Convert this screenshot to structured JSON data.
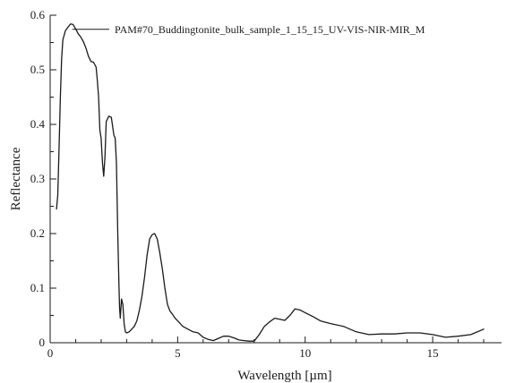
{
  "chart_data": {
    "type": "line",
    "xlabel": "Wavelength [µm]",
    "ylabel": "Reflectance",
    "xlim": [
      0,
      17.7
    ],
    "ylim": [
      0,
      0.6
    ],
    "x_ticks": [
      0,
      5,
      10,
      15
    ],
    "x_minor_ticks": [
      1,
      2,
      3,
      4,
      6,
      7,
      8,
      9,
      11,
      12,
      13,
      14,
      16,
      17
    ],
    "y_ticks": [
      0,
      0.1,
      0.2,
      0.3,
      0.4,
      0.5,
      0.6
    ],
    "y_tick_labels": [
      "0",
      "0.1",
      "0.2",
      "0.3",
      "0.4",
      "0.5",
      "0.6"
    ],
    "grid": false,
    "legend_position": "top-right",
    "series": [
      {
        "name": "PAM#70_Buddingtonite_bulk_sample_1_15_15_UV-VIS-NIR-MIR_M",
        "color": "#1a1a1a",
        "x": [
          0.25,
          0.3,
          0.35,
          0.4,
          0.45,
          0.5,
          0.6,
          0.7,
          0.8,
          0.9,
          1.0,
          1.1,
          1.2,
          1.3,
          1.4,
          1.5,
          1.6,
          1.7,
          1.8,
          1.85,
          1.9,
          1.95,
          2.0,
          2.05,
          2.1,
          2.15,
          2.2,
          2.3,
          2.4,
          2.5,
          2.55,
          2.6,
          2.65,
          2.7,
          2.72,
          2.75,
          2.8,
          2.85,
          2.9,
          2.95,
          3.0,
          3.1,
          3.2,
          3.3,
          3.4,
          3.5,
          3.6,
          3.7,
          3.8,
          3.9,
          4.0,
          4.1,
          4.2,
          4.3,
          4.4,
          4.5,
          4.6,
          4.7,
          4.8,
          4.9,
          5.0,
          5.2,
          5.4,
          5.6,
          5.8,
          6.0,
          6.2,
          6.4,
          6.6,
          6.8,
          7.0,
          7.2,
          7.4,
          7.6,
          7.8,
          8.0,
          8.2,
          8.4,
          8.6,
          8.8,
          9.0,
          9.2,
          9.4,
          9.6,
          9.8,
          10.0,
          10.3,
          10.6,
          11.0,
          11.5,
          12.0,
          12.5,
          13.0,
          13.5,
          14.0,
          14.5,
          15.0,
          15.5,
          16.0,
          16.5,
          17.0
        ],
        "y": [
          0.245,
          0.27,
          0.36,
          0.45,
          0.52,
          0.555,
          0.572,
          0.578,
          0.584,
          0.583,
          0.575,
          0.566,
          0.56,
          0.552,
          0.54,
          0.525,
          0.515,
          0.514,
          0.505,
          0.48,
          0.45,
          0.39,
          0.375,
          0.33,
          0.305,
          0.34,
          0.405,
          0.415,
          0.413,
          0.38,
          0.375,
          0.33,
          0.2,
          0.1,
          0.065,
          0.045,
          0.08,
          0.07,
          0.035,
          0.02,
          0.018,
          0.02,
          0.025,
          0.03,
          0.04,
          0.06,
          0.085,
          0.12,
          0.16,
          0.19,
          0.198,
          0.2,
          0.19,
          0.165,
          0.135,
          0.1,
          0.07,
          0.058,
          0.052,
          0.045,
          0.04,
          0.03,
          0.025,
          0.02,
          0.018,
          0.01,
          0.006,
          0.004,
          0.008,
          0.012,
          0.012,
          0.009,
          0.005,
          0.004,
          0.003,
          0.003,
          0.015,
          0.03,
          0.038,
          0.045,
          0.043,
          0.041,
          0.05,
          0.062,
          0.06,
          0.055,
          0.048,
          0.04,
          0.035,
          0.03,
          0.02,
          0.015,
          0.016,
          0.016,
          0.018,
          0.018,
          0.015,
          0.01,
          0.012,
          0.015,
          0.025
        ]
      }
    ]
  }
}
